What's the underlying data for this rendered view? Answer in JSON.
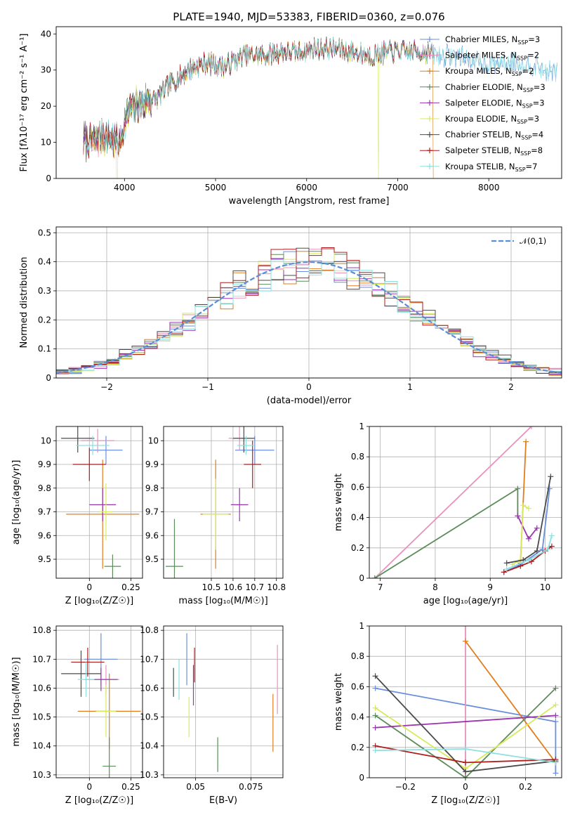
{
  "figure_title": "PLATE=1940, MJD=53383, FIBERID=0360, z=0.076",
  "models": [
    {
      "name": "Chabrier MILES",
      "nssp": "3",
      "color": "#6a8fdc"
    },
    {
      "name": "Salpeter MILES",
      "nssp": "2",
      "color": "#e991bf"
    },
    {
      "name": "Kroupa MILES",
      "nssp": "2",
      "color": "#e07d1e"
    },
    {
      "name": "Chabrier ELODIE",
      "nssp": "3",
      "color": "#5b8c5a"
    },
    {
      "name": "Salpeter ELODIE",
      "nssp": "3",
      "color": "#9b35b0"
    },
    {
      "name": "Kroupa ELODIE",
      "nssp": "3",
      "color": "#d8ea5c"
    },
    {
      "name": "Chabrier STELIB",
      "nssp": "4",
      "color": "#4b4b4b"
    },
    {
      "name": "Salpeter STELIB",
      "nssp": "8",
      "color": "#b01c1c"
    },
    {
      "name": "Kroupa STELIB",
      "nssp": "7",
      "color": "#8ce0e0"
    }
  ],
  "chart_data": [
    {
      "id": "spectrum",
      "type": "line",
      "xlabel": "wavelength [Angstrom, rest frame]",
      "ylabel": "Flux [fλ10⁻¹⁷ erg cm⁻² s⁻¹ A⁻¹]",
      "xlim": [
        3250,
        8800
      ],
      "ylim": [
        0,
        42
      ],
      "xticks": [
        4000,
        5000,
        6000,
        7000,
        8000
      ],
      "yticks": [
        0,
        10,
        20,
        30,
        40
      ],
      "envelope_x": [
        3550,
        3650,
        3750,
        3850,
        3950,
        4050,
        4200,
        4350,
        4500,
        4700,
        4900,
        5100,
        5300,
        5500,
        5700,
        5900,
        6100,
        6300,
        6500,
        6700,
        6900,
        7100,
        7300,
        7500,
        7700,
        7900,
        8100,
        8300,
        8500,
        8750
      ],
      "envelope_y": [
        11,
        10,
        12,
        11,
        10,
        19,
        21,
        22,
        26,
        30,
        32,
        31,
        34,
        34,
        35,
        35,
        36,
        36,
        35,
        34,
        35,
        35,
        35,
        34,
        34,
        32,
        32,
        32,
        31,
        29
      ],
      "grid": false
    },
    {
      "id": "residual-histogram",
      "type": "histogram",
      "xlabel": "(data-model)/error",
      "ylabel": "Normed distribution",
      "xlim": [
        -2.5,
        2.5
      ],
      "ylim": [
        0,
        0.52
      ],
      "xticks": [
        -2,
        -1,
        0,
        1,
        2
      ],
      "yticks": [
        0.0,
        0.1,
        0.2,
        0.3,
        0.4,
        0.5
      ],
      "reference_curve": "𝒩(0,1)",
      "legend": "top-right",
      "grid": true
    },
    {
      "id": "age-vs-Z",
      "type": "errorbar",
      "xlabel": "Z [log₁₀(Z/Z☉)]",
      "ylabel": "age  [log₁₀(age/yr)]",
      "xlim": [
        -0.2,
        0.32
      ],
      "ylim": [
        9.42,
        10.06
      ],
      "xticks": [
        0.0,
        0.25
      ],
      "yticks": [
        9.5,
        9.6,
        9.7,
        9.8,
        9.9,
        10.0
      ],
      "points": [
        {
          "x": 0.1,
          "y": 9.96,
          "xerr": 0.1,
          "yerr": 0.06
        },
        {
          "x": 0.05,
          "y": 10.0,
          "xerr": 0.1,
          "yerr": 0.05
        },
        {
          "x": 0.08,
          "y": 9.69,
          "xerr": 0.22,
          "yerr": 0.23
        },
        {
          "x": 0.14,
          "y": 9.47,
          "xerr": 0.05,
          "yerr": 0.05
        },
        {
          "x": 0.08,
          "y": 9.73,
          "xerr": 0.08,
          "yerr": 0.07
        },
        {
          "x": 0.1,
          "y": 9.7,
          "xerr": 0.04,
          "yerr": 0.12
        },
        {
          "x": -0.07,
          "y": 10.01,
          "xerr": 0.1,
          "yerr": 0.06
        },
        {
          "x": 0.0,
          "y": 9.9,
          "xerr": 0.1,
          "yerr": 0.07
        },
        {
          "x": 0.02,
          "y": 9.98,
          "xerr": 0.1,
          "yerr": 0.04
        }
      ],
      "grid": true
    },
    {
      "id": "age-vs-mass",
      "type": "errorbar",
      "xlabel": "mass [log₁₀(M/M☉)]",
      "ylabel": "",
      "xlim": [
        10.28,
        10.83
      ],
      "ylim": [
        9.42,
        10.06
      ],
      "xticks": [
        10.5,
        10.6,
        10.7,
        10.8
      ],
      "yticks": [
        9.5,
        9.6,
        9.7,
        9.8,
        9.9,
        10.0
      ],
      "points": [
        {
          "x": 10.7,
          "y": 9.96,
          "xerr": 0.09,
          "yerr": 0.06
        },
        {
          "x": 10.63,
          "y": 10.01,
          "xerr": 0.05,
          "yerr": 0.05
        },
        {
          "x": 10.52,
          "y": 9.69,
          "xerr": 0.07,
          "yerr": 0.23
        },
        {
          "x": 10.33,
          "y": 9.47,
          "xerr": 0.04,
          "yerr": 0.2
        },
        {
          "x": 10.63,
          "y": 9.73,
          "xerr": 0.04,
          "yerr": 0.07
        },
        {
          "x": 10.52,
          "y": 9.69,
          "xerr": 0.06,
          "yerr": 0.15
        },
        {
          "x": 10.65,
          "y": 10.01,
          "xerr": 0.05,
          "yerr": 0.06
        },
        {
          "x": 10.69,
          "y": 9.9,
          "xerr": 0.04,
          "yerr": 0.1
        },
        {
          "x": 10.66,
          "y": 9.98,
          "xerr": 0.04,
          "yerr": 0.04
        }
      ],
      "grid": true
    },
    {
      "id": "mass-weight-vs-age",
      "type": "line",
      "xlabel": "age  [log₁₀(age/yr)]",
      "ylabel": "mass weight",
      "xlim": [
        6.8,
        10.3
      ],
      "ylim": [
        0,
        1
      ],
      "xticks": [
        7,
        8,
        9,
        10
      ],
      "yticks": [
        0.0,
        0.2,
        0.4,
        0.6,
        0.8,
        1.0
      ],
      "series": [
        {
          "x": [
            9.25,
            9.55,
            9.95,
            10.08
          ],
          "y": [
            0.04,
            0.09,
            0.19,
            0.59
          ]
        },
        {
          "x": [
            6.9,
            9.75
          ],
          "y": [
            0.0,
            1.0
          ]
        },
        {
          "x": [
            9.55,
            9.65
          ],
          "y": [
            0.1,
            0.9
          ]
        },
        {
          "x": [
            6.9,
            9.5,
            9.5
          ],
          "y": [
            0.0,
            0.59,
            0.41
          ]
        },
        {
          "x": [
            9.5,
            9.7,
            9.85
          ],
          "y": [
            0.41,
            0.26,
            0.33
          ]
        },
        {
          "x": [
            9.4,
            9.55,
            9.6,
            9.7
          ],
          "y": [
            0.09,
            0.12,
            0.48,
            0.46
          ]
        },
        {
          "x": [
            9.3,
            9.6,
            9.85,
            10.1
          ],
          "y": [
            0.1,
            0.12,
            0.18,
            0.67
          ]
        },
        {
          "x": [
            9.25,
            9.55,
            9.75,
            10.0,
            10.12
          ],
          "y": [
            0.04,
            0.08,
            0.11,
            0.18,
            0.21
          ]
        },
        {
          "x": [
            9.3,
            9.7,
            10.05,
            10.12
          ],
          "y": [
            0.06,
            0.12,
            0.19,
            0.28
          ]
        }
      ],
      "grid": true
    },
    {
      "id": "mass-vs-Z",
      "type": "errorbar",
      "xlabel": "Z [log₁₀(Z/Z☉)]",
      "ylabel": "mass [log₁₀(M/M☉)]",
      "xlim": [
        -0.2,
        0.32
      ],
      "ylim": [
        10.29,
        10.815
      ],
      "xticks": [
        0.0,
        0.25
      ],
      "yticks": [
        10.3,
        10.4,
        10.5,
        10.6,
        10.7,
        10.8
      ],
      "points": [
        {
          "x": 0.07,
          "y": 10.7,
          "xerr": 0.1,
          "yerr": 0.09
        },
        {
          "x": 0.1,
          "y": 10.63,
          "xerr": 0.08,
          "yerr": 0.05
        },
        {
          "x": 0.12,
          "y": 10.52,
          "xerr": 0.19,
          "yerr": 0.13
        },
        {
          "x": 0.12,
          "y": 10.33,
          "xerr": 0.04,
          "yerr": 0.1
        },
        {
          "x": 0.07,
          "y": 10.63,
          "xerr": 0.1,
          "yerr": 0.04
        },
        {
          "x": 0.1,
          "y": 10.52,
          "xerr": 0.06,
          "yerr": 0.09
        },
        {
          "x": -0.05,
          "y": 10.65,
          "xerr": 0.12,
          "yerr": 0.08
        },
        {
          "x": -0.01,
          "y": 10.69,
          "xerr": 0.1,
          "yerr": 0.05
        },
        {
          "x": -0.02,
          "y": 10.63,
          "xerr": 0.05,
          "yerr": 0.06
        }
      ],
      "grid": true
    },
    {
      "id": "mass-vs-ebv",
      "type": "errorbar",
      "xlabel": "E(B-V)",
      "ylabel": "",
      "xlim": [
        0.0355,
        0.0895
      ],
      "ylim": [
        10.29,
        10.815
      ],
      "xticks": [
        0.05,
        0.075
      ],
      "yticks": [
        10.3,
        10.4,
        10.5,
        10.6,
        10.7,
        10.8
      ],
      "points": [
        {
          "x": 0.046,
          "y": 10.7,
          "xerr": 0,
          "yerr": 0.09
        },
        {
          "x": 0.087,
          "y": 10.63,
          "xerr": 0,
          "yerr": 0.12
        },
        {
          "x": 0.085,
          "y": 10.48,
          "xerr": 0,
          "yerr": 0.1
        },
        {
          "x": 0.06,
          "y": 10.37,
          "xerr": 0,
          "yerr": 0.06
        },
        {
          "x": 0.049,
          "y": 10.61,
          "xerr": 0,
          "yerr": 0.07
        },
        {
          "x": 0.047,
          "y": 10.5,
          "xerr": 0,
          "yerr": 0.07
        },
        {
          "x": 0.04,
          "y": 10.62,
          "xerr": 0,
          "yerr": 0.05
        },
        {
          "x": 0.0495,
          "y": 10.68,
          "xerr": 0,
          "yerr": 0.06
        },
        {
          "x": 0.0425,
          "y": 10.63,
          "xerr": 0,
          "yerr": 0.07
        }
      ],
      "grid": true
    },
    {
      "id": "mass-weight-vs-Z",
      "type": "line",
      "xlabel": "Z [log₁₀(Z/Z☉)]",
      "ylabel": "mass weight",
      "xlim": [
        -0.32,
        0.32
      ],
      "ylim": [
        0,
        1
      ],
      "xticks": [
        -0.2,
        0.0,
        0.2
      ],
      "yticks": [
        0.0,
        0.2,
        0.4,
        0.6,
        0.8,
        1.0
      ],
      "series": [
        {
          "x": [
            -0.3,
            0.3,
            0.3
          ],
          "y": [
            0.59,
            0.37,
            0.03
          ]
        },
        {
          "x": [
            0.0,
            0.0
          ],
          "y": [
            0.0,
            1.0
          ]
        },
        {
          "x": [
            0.0,
            0.3
          ],
          "y": [
            0.9,
            0.1
          ]
        },
        {
          "x": [
            -0.3,
            0.0,
            0.3
          ],
          "y": [
            0.41,
            0.0,
            0.59
          ]
        },
        {
          "x": [
            -0.3,
            0.3
          ],
          "y": [
            0.33,
            0.41
          ]
        },
        {
          "x": [
            -0.3,
            0.0,
            0.3
          ],
          "y": [
            0.46,
            0.06,
            0.48
          ]
        },
        {
          "x": [
            -0.3,
            0.0,
            0.3
          ],
          "y": [
            0.67,
            0.04,
            0.11
          ]
        },
        {
          "x": [
            -0.3,
            0.0,
            0.3
          ],
          "y": [
            0.21,
            0.1,
            0.12
          ]
        },
        {
          "x": [
            -0.3,
            0.0,
            0.3
          ],
          "y": [
            0.18,
            0.19,
            0.1
          ]
        }
      ],
      "grid": true
    }
  ]
}
